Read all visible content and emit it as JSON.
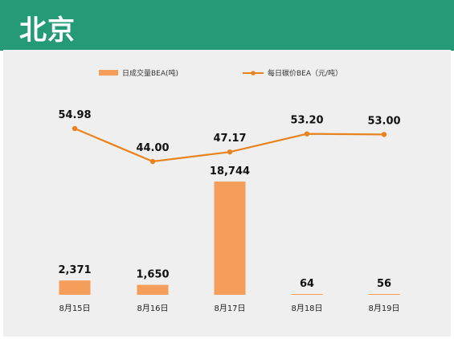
{
  "header": {
    "title": "北京"
  },
  "colors": {
    "header_bg": "#259a77",
    "bar": "#f59d5b",
    "line": "#e8831f",
    "panel_bg": "#efefef"
  },
  "chart_data": {
    "type": "bar",
    "categories": [
      "8月15日",
      "8月16日",
      "8月17日",
      "8月18日",
      "8月19日"
    ],
    "series": [
      {
        "name": "日成交量BEA(吨)",
        "type": "bar",
        "values": [
          2371,
          1650,
          18744,
          64,
          56
        ],
        "labels": [
          "2,371",
          "1,650",
          "18,744",
          "64",
          "56"
        ]
      },
      {
        "name": "每日碳价BEA（元/吨）",
        "type": "line",
        "values": [
          54.98,
          44.0,
          47.17,
          53.2,
          53.0
        ],
        "labels": [
          "54.98",
          "44.00",
          "47.17",
          "53.20",
          "53.00"
        ]
      }
    ],
    "legend_position": "top",
    "grid": false
  }
}
